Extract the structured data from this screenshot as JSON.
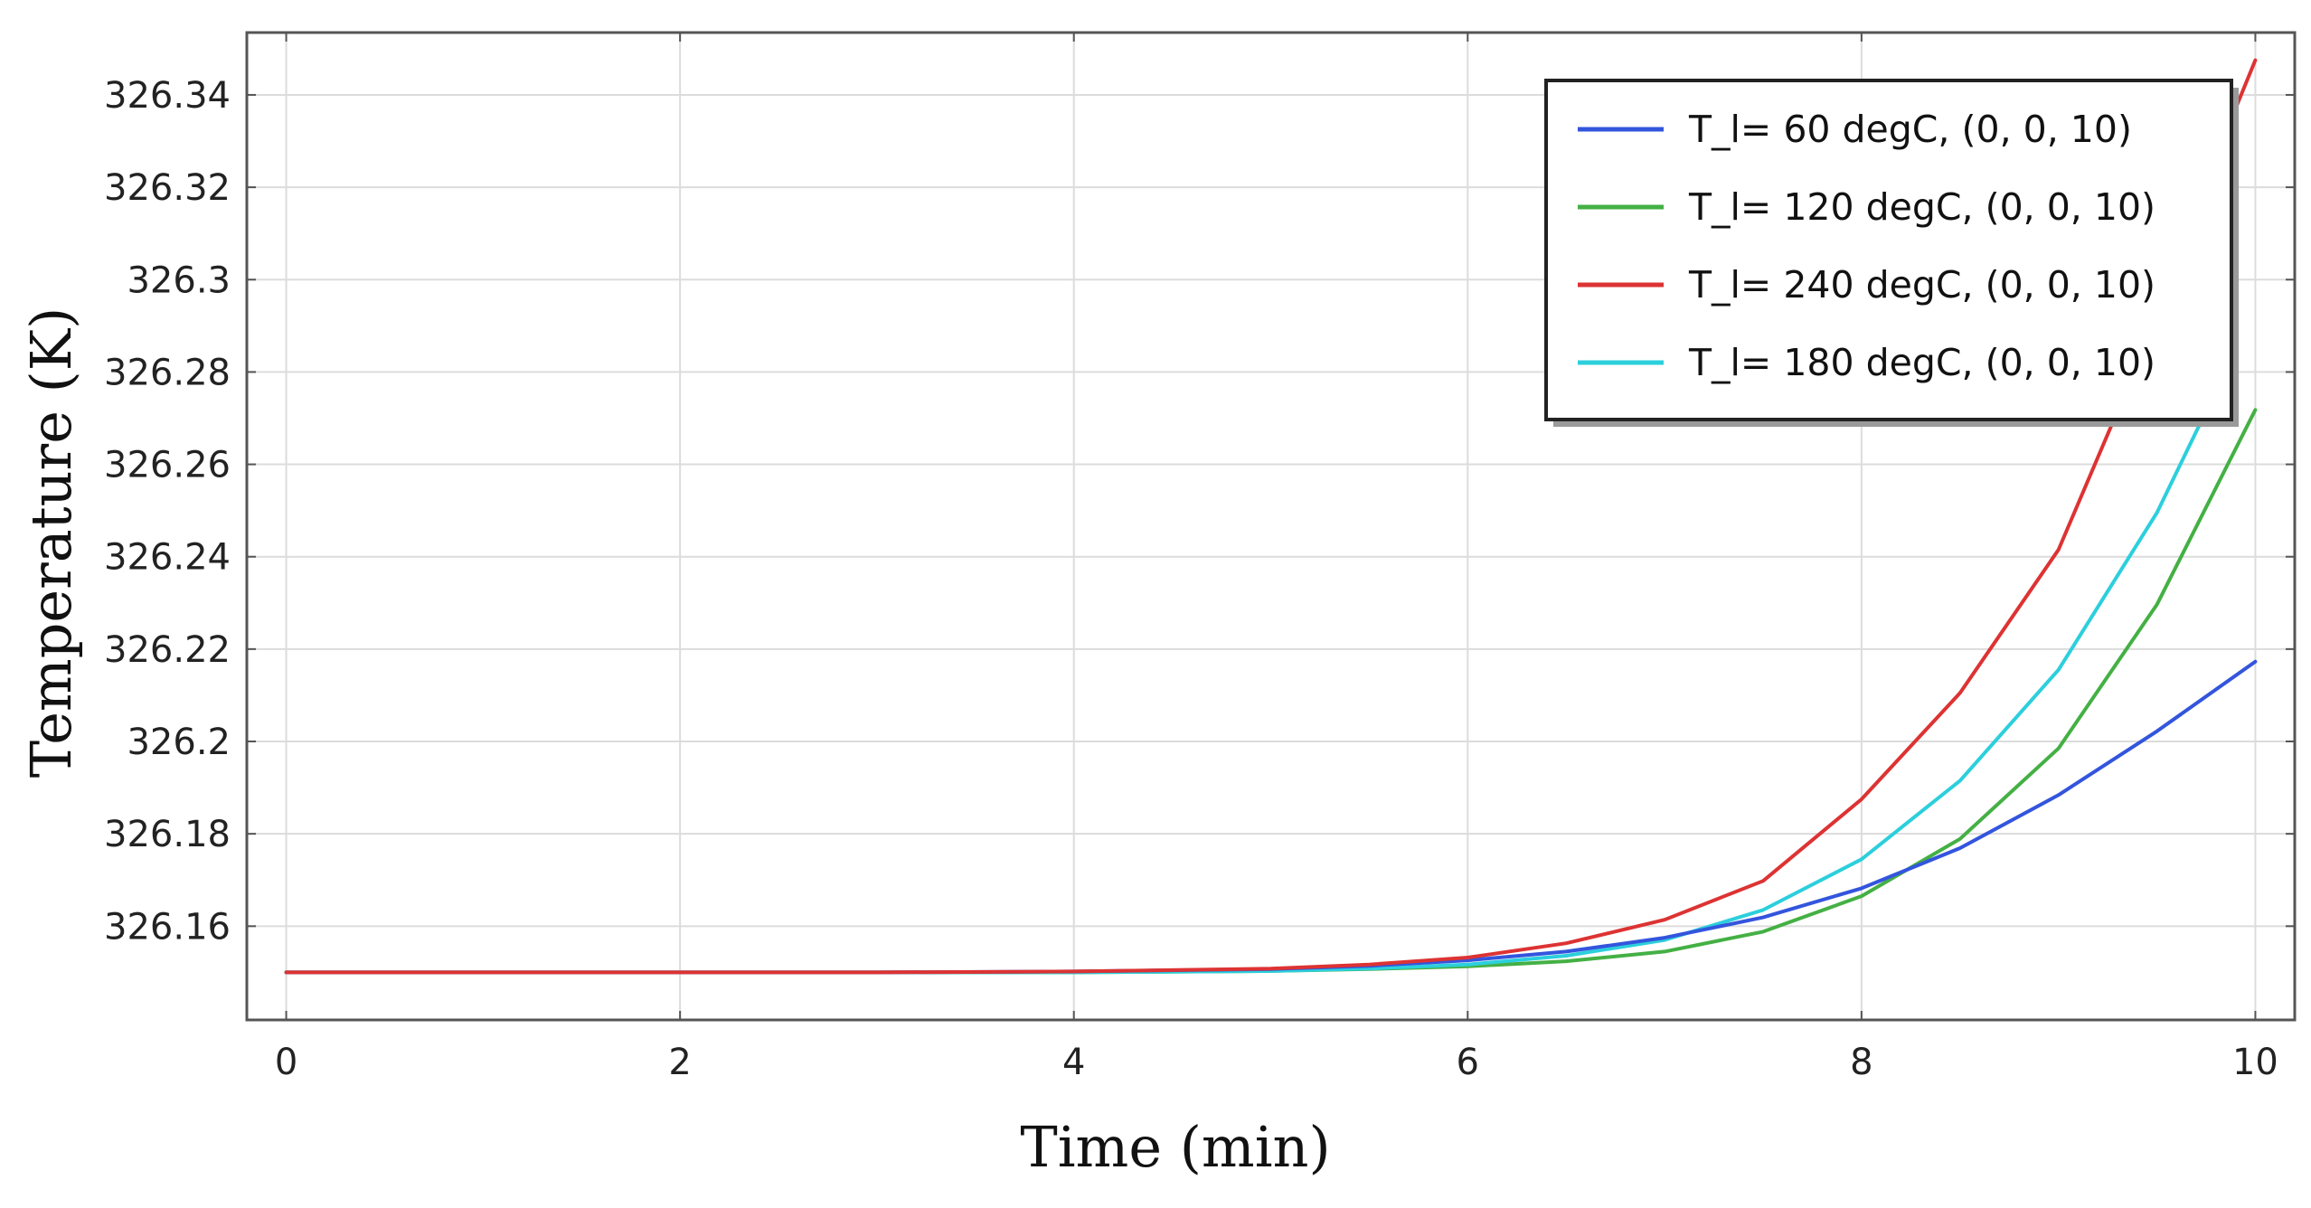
{
  "chart_data": {
    "type": "line",
    "title": "",
    "xlabel": "Time (min)",
    "ylabel": "Temperature (K)",
    "xlim": [
      -0.2,
      10.2
    ],
    "ylim": [
      326.1397,
      326.3535
    ],
    "xticks": [
      0,
      2,
      4,
      6,
      8,
      10
    ],
    "xtick_labels": [
      "0",
      "2",
      "4",
      "6",
      "8",
      "10"
    ],
    "yticks": [
      326.16,
      326.18,
      326.2,
      326.22,
      326.24,
      326.26,
      326.28,
      326.3,
      326.32,
      326.34
    ],
    "ytick_labels": [
      "326.16",
      "326.18",
      "326.2",
      "326.22",
      "326.24",
      "326.26",
      "326.28",
      "326.3",
      "326.32",
      "326.34"
    ],
    "grid": true,
    "legend_position": "top-right",
    "series": [
      {
        "name": "T_l= 60 degC, (0, 0, 10)",
        "color": "#3355dd",
        "x": [
          0,
          1,
          2,
          3,
          4,
          5,
          5.5,
          6,
          6.5,
          7,
          7.5,
          8,
          8.5,
          9,
          9.5,
          10
        ],
        "y": [
          326.15,
          326.15,
          326.15,
          326.15,
          326.1502,
          326.1507,
          326.1514,
          326.1526,
          326.1545,
          326.1575,
          326.1619,
          326.1682,
          326.1769,
          326.1884,
          326.2022,
          326.2173
        ]
      },
      {
        "name": "T_l= 120 degC, (0, 0, 10)",
        "color": "#44b044",
        "x": [
          0,
          1,
          2,
          3,
          4,
          5,
          5.5,
          6,
          6.5,
          7,
          7.5,
          8,
          8.5,
          9,
          9.5,
          10
        ],
        "y": [
          326.15,
          326.15,
          326.15,
          326.15,
          326.15,
          326.1503,
          326.1507,
          326.1513,
          326.1524,
          326.1545,
          326.1588,
          326.1665,
          326.1789,
          326.1985,
          326.2296,
          326.2718
        ]
      },
      {
        "name": "T_l= 240 degC, (0, 0, 10)",
        "color": "#dd3333",
        "x": [
          0,
          1,
          2,
          3,
          4,
          5,
          5.5,
          6,
          6.5,
          7,
          7.5,
          8,
          8.5,
          9,
          9.3,
          9.6,
          10
        ],
        "y": [
          326.15,
          326.15,
          326.15,
          326.15,
          326.1502,
          326.1508,
          326.1517,
          326.1532,
          326.1563,
          326.1614,
          326.1698,
          326.1875,
          326.2105,
          326.2415,
          326.2715,
          326.3058,
          326.3475
        ]
      },
      {
        "name": "T_l= 180 degC, (0, 0, 10)",
        "color": "#2ccfdc",
        "x": [
          0,
          1,
          2,
          3,
          4,
          5,
          5.5,
          6,
          6.5,
          7,
          7.5,
          8,
          8.5,
          9,
          9.5,
          9.75
        ],
        "y": [
          326.15,
          326.15,
          326.15,
          326.15,
          326.15,
          326.1503,
          326.1508,
          326.1517,
          326.1536,
          326.157,
          326.1635,
          326.1745,
          326.1915,
          326.2155,
          326.2495,
          326.2715
        ]
      }
    ]
  }
}
